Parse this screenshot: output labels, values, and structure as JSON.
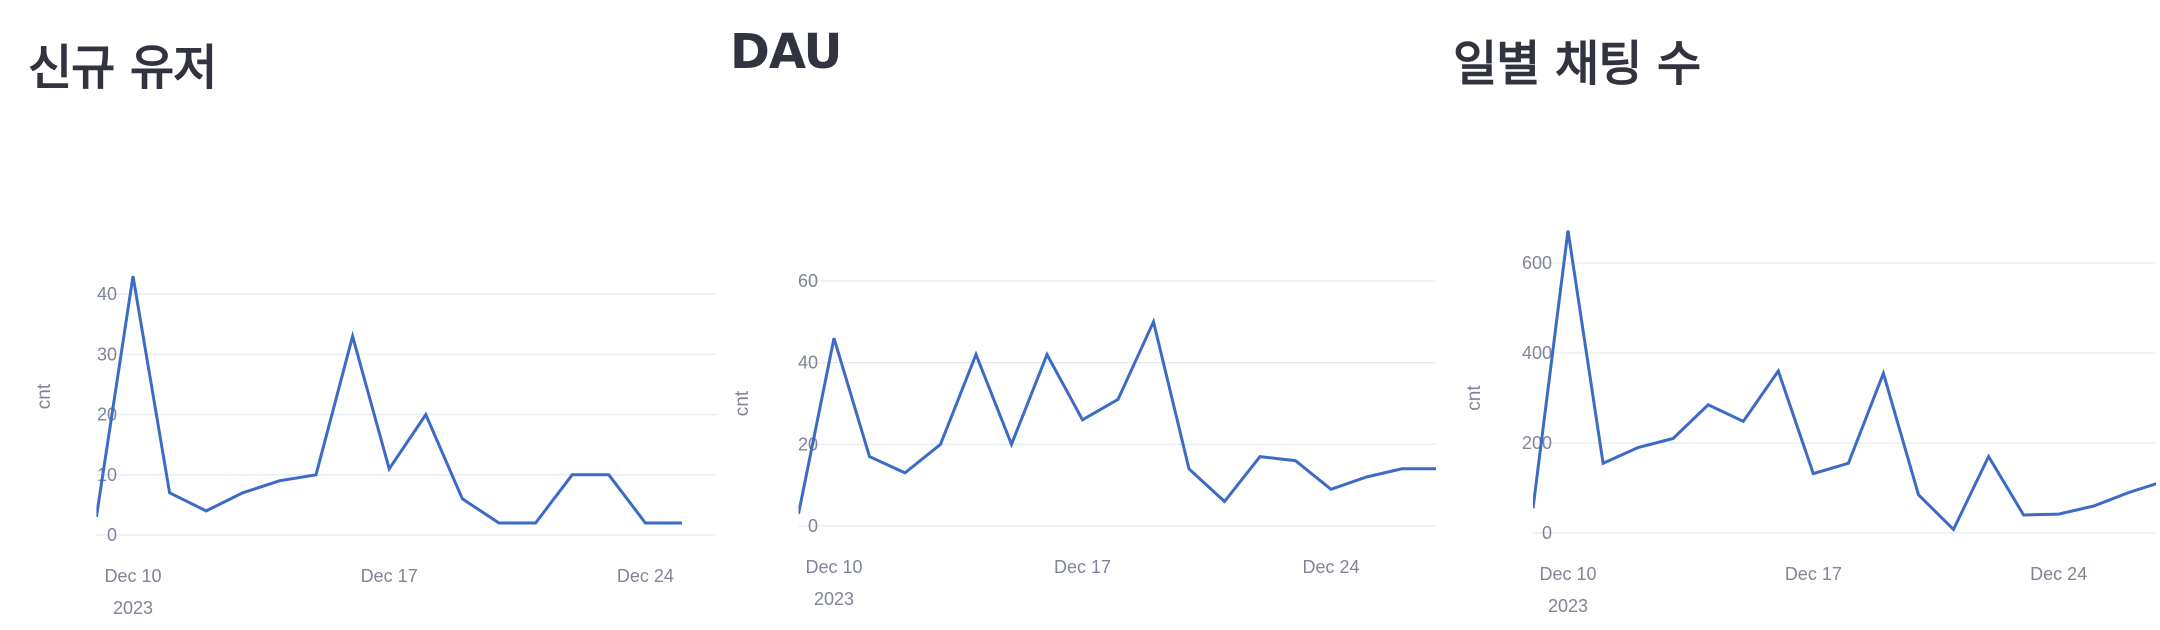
{
  "panels": [
    {
      "title": "신규 유저"
    },
    {
      "title": "DAU"
    },
    {
      "title": "일별 채팅 수"
    }
  ],
  "chart_data": [
    {
      "type": "line",
      "title": "신규 유저",
      "xlabel": "",
      "ylabel": "cnt",
      "x": [
        "2023-12-09",
        "2023-12-10",
        "2023-12-11",
        "2023-12-12",
        "2023-12-13",
        "2023-12-14",
        "2023-12-15",
        "2023-12-16",
        "2023-12-17",
        "2023-12-18",
        "2023-12-19",
        "2023-12-20",
        "2023-12-21",
        "2023-12-22",
        "2023-12-23",
        "2023-12-24",
        "2023-12-25"
      ],
      "values": [
        3,
        43,
        7,
        4,
        7,
        9,
        10,
        33,
        11,
        20,
        6,
        2,
        2,
        10,
        10,
        2,
        2
      ],
      "x_ticks": [
        {
          "value": "2023-12-10",
          "label": "Dec 10",
          "sublabel": "2023"
        },
        {
          "value": "2023-12-17",
          "label": "Dec 17"
        },
        {
          "value": "2023-12-24",
          "label": "Dec 24"
        }
      ],
      "y_ticks": [
        0,
        10,
        20,
        30,
        40
      ],
      "ylim": [
        0,
        46
      ],
      "grid": true
    },
    {
      "type": "line",
      "title": "DAU",
      "xlabel": "",
      "ylabel": "cnt",
      "x": [
        "2023-12-09",
        "2023-12-10",
        "2023-12-11",
        "2023-12-12",
        "2023-12-13",
        "2023-12-14",
        "2023-12-15",
        "2023-12-16",
        "2023-12-17",
        "2023-12-18",
        "2023-12-19",
        "2023-12-20",
        "2023-12-21",
        "2023-12-22",
        "2023-12-23",
        "2023-12-24",
        "2023-12-25",
        "2023-12-26",
        "2023-12-27"
      ],
      "values": [
        3,
        46,
        17,
        13,
        20,
        42,
        20,
        42,
        26,
        31,
        50,
        14,
        6,
        17,
        16,
        9,
        12,
        14,
        14
      ],
      "x_ticks": [
        {
          "value": "2023-12-10",
          "label": "Dec 10",
          "sublabel": "2023"
        },
        {
          "value": "2023-12-17",
          "label": "Dec 17"
        },
        {
          "value": "2023-12-24",
          "label": "Dec 24"
        }
      ],
      "y_ticks": [
        0,
        20,
        40,
        60
      ],
      "ylim": [
        0,
        60
      ],
      "grid": true
    },
    {
      "type": "line",
      "title": "일별 채팅 수",
      "xlabel": "",
      "ylabel": "cnt",
      "x": [
        "2023-12-09",
        "2023-12-10",
        "2023-12-11",
        "2023-12-12",
        "2023-12-13",
        "2023-12-14",
        "2023-12-15",
        "2023-12-16",
        "2023-12-17",
        "2023-12-18",
        "2023-12-19",
        "2023-12-20",
        "2023-12-21",
        "2023-12-22",
        "2023-12-23",
        "2023-12-24",
        "2023-12-25",
        "2023-12-26",
        "2023-12-27"
      ],
      "values": [
        55,
        672,
        155,
        190,
        210,
        285,
        248,
        360,
        132,
        155,
        355,
        85,
        8,
        170,
        40,
        42,
        60,
        90,
        115
      ],
      "x_ticks": [
        {
          "value": "2023-12-10",
          "label": "Dec 10",
          "sublabel": "2023"
        },
        {
          "value": "2023-12-17",
          "label": "Dec 17"
        },
        {
          "value": "2023-12-24",
          "label": "Dec 24"
        }
      ],
      "y_ticks": [
        0,
        200,
        400,
        600
      ],
      "ylim": [
        0,
        600
      ],
      "grid": true
    }
  ]
}
